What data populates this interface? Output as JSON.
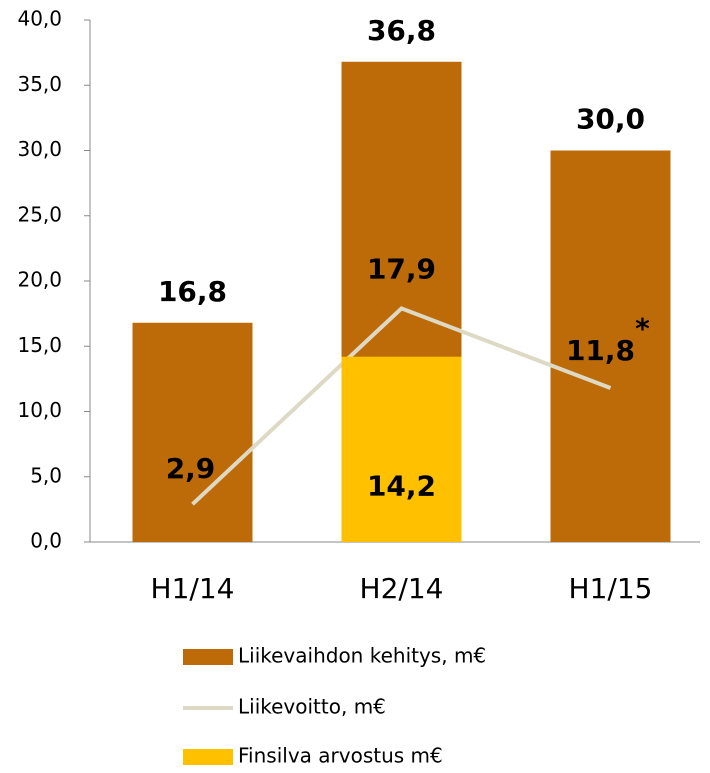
{
  "chart_data": {
    "type": "bar",
    "categories": [
      "H1/14",
      "H2/14",
      "H1/15"
    ],
    "series": [
      {
        "name": "Liikevaihdon kehitys, m€",
        "type": "bar",
        "color": "#bd6b09",
        "values": [
          16.8,
          36.8,
          30.0
        ],
        "value_labels": [
          "16,8",
          "36,8",
          "30,0"
        ]
      },
      {
        "name": "Liikevoitto, m€",
        "type": "line",
        "color": "#ddd9c4",
        "values": [
          2.9,
          17.9,
          11.8
        ],
        "value_labels": [
          "2,9",
          "17,9",
          "11,8"
        ]
      },
      {
        "name": "Finsilva arvostus m€",
        "type": "bar",
        "color": "#ffc000",
        "values": [
          null,
          14.2,
          null
        ],
        "value_labels": [
          null,
          "14,2",
          null
        ]
      }
    ],
    "annotations": [
      "*"
    ],
    "ylim": [
      0,
      40
    ],
    "yticks": [
      {
        "value": 0,
        "label": "0,0"
      },
      {
        "value": 5,
        "label": "5,0"
      },
      {
        "value": 10,
        "label": "10,0"
      },
      {
        "value": 15,
        "label": "15,0"
      },
      {
        "value": 20,
        "label": "20,0"
      },
      {
        "value": 25,
        "label": "25,0"
      },
      {
        "value": 30,
        "label": "30,0"
      },
      {
        "value": 35,
        "label": "35,0"
      },
      {
        "value": 40,
        "label": "40,0"
      }
    ],
    "grid": false
  }
}
